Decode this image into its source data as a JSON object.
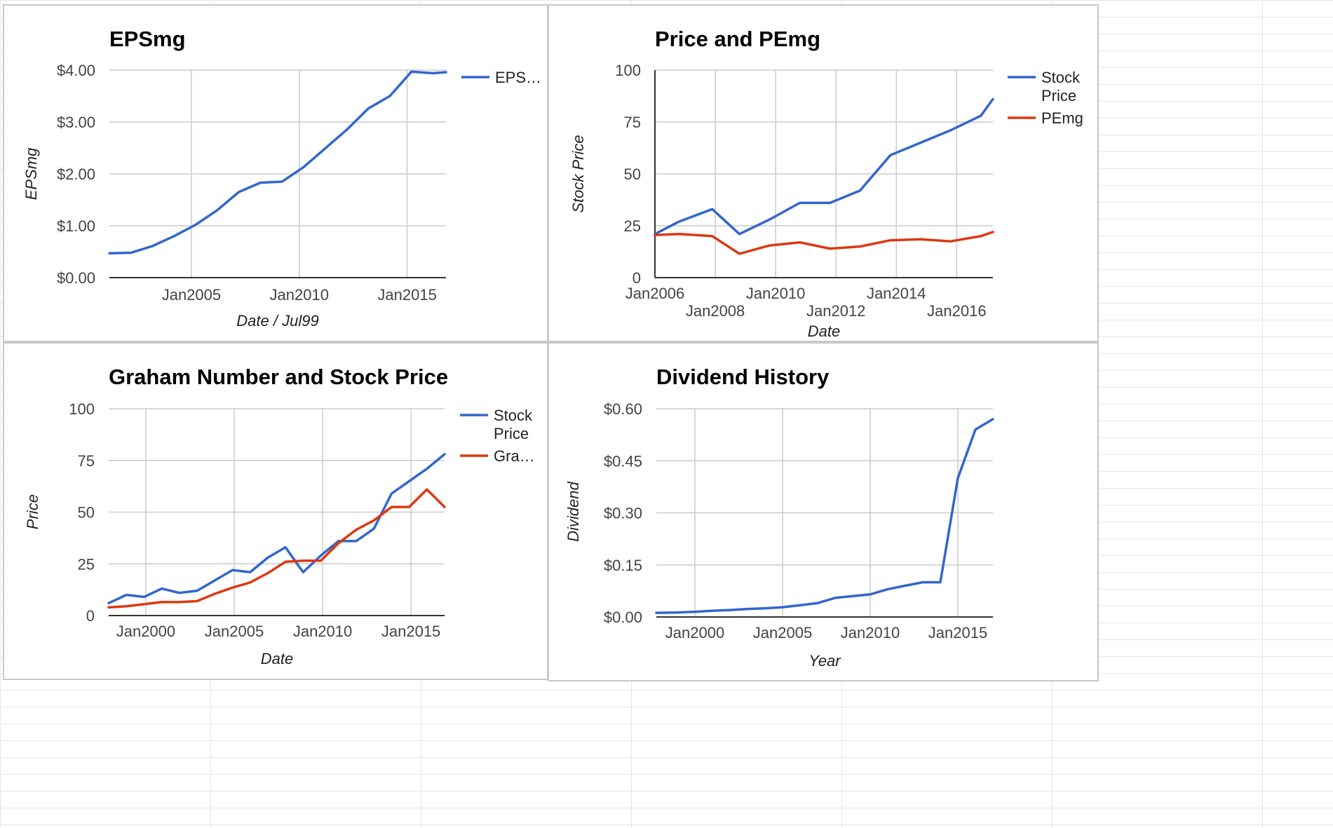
{
  "colors": {
    "blue": "#3366cc",
    "red": "#dc3912"
  },
  "chart_data": [
    {
      "type": "line",
      "title": "EPSmg",
      "xlabel": "Date / Jul99",
      "ylabel": "EPSmg",
      "xlim": [
        2001.2,
        2016.8
      ],
      "ylim": [
        0,
        4
      ],
      "x_ticks": [
        {
          "x": 2005,
          "label": "Jan2005"
        },
        {
          "x": 2010,
          "label": "Jan2010"
        },
        {
          "x": 2015,
          "label": "Jan2015"
        }
      ],
      "y_ticks": [
        {
          "y": 0,
          "label": "$0.00"
        },
        {
          "y": 1,
          "label": "$1.00"
        },
        {
          "y": 2,
          "label": "$2.00"
        },
        {
          "y": 3,
          "label": "$3.00"
        },
        {
          "y": 4,
          "label": "$4.00"
        }
      ],
      "grid": true,
      "legend_position": "right",
      "series": [
        {
          "name": "EPS…",
          "color": "#3366cc",
          "x": [
            2001.2,
            2002.2,
            2003.2,
            2004.2,
            2005.2,
            2006.2,
            2007.2,
            2008.2,
            2009.2,
            2010.2,
            2011.2,
            2012.2,
            2013.2,
            2014.2,
            2015.2,
            2016.2,
            2016.8
          ],
          "y": [
            0.47,
            0.48,
            0.61,
            0.8,
            1.02,
            1.3,
            1.65,
            1.83,
            1.85,
            2.13,
            2.49,
            2.85,
            3.26,
            3.5,
            3.97,
            3.94,
            3.96
          ]
        }
      ]
    },
    {
      "type": "line",
      "title": "Price and PEmg",
      "xlabel": "Date",
      "ylabel": "Stock Price",
      "xlim": [
        2006,
        2017.2
      ],
      "ylim": [
        0,
        100
      ],
      "x_ticks": [
        {
          "x": 2006,
          "label": "Jan2006",
          "row": 0
        },
        {
          "x": 2008,
          "label": "Jan2008",
          "row": 1
        },
        {
          "x": 2010,
          "label": "Jan2010",
          "row": 0
        },
        {
          "x": 2012,
          "label": "Jan2012",
          "row": 1
        },
        {
          "x": 2014,
          "label": "Jan2014",
          "row": 0
        },
        {
          "x": 2016,
          "label": "Jan2016",
          "row": 1
        }
      ],
      "y_ticks": [
        {
          "y": 0,
          "label": "0"
        },
        {
          "y": 25,
          "label": "25"
        },
        {
          "y": 50,
          "label": "50"
        },
        {
          "y": 75,
          "label": "75"
        },
        {
          "y": 100,
          "label": "100"
        }
      ],
      "grid": true,
      "legend_position": "right",
      "series": [
        {
          "name": "Stock Price",
          "color": "#3366cc",
          "x": [
            2006.0,
            2006.8,
            2007.9,
            2008.8,
            2009.8,
            2010.8,
            2011.8,
            2012.8,
            2013.8,
            2014.8,
            2015.8,
            2016.8,
            2017.2
          ],
          "y": [
            21,
            27,
            33,
            21,
            28,
            36,
            36,
            42,
            59,
            65,
            71,
            78,
            86
          ]
        },
        {
          "name": "PEmg",
          "color": "#dc3912",
          "x": [
            2006.0,
            2006.8,
            2007.9,
            2008.8,
            2009.8,
            2010.8,
            2011.8,
            2012.8,
            2013.8,
            2014.8,
            2015.8,
            2016.8,
            2017.2
          ],
          "y": [
            20.5,
            21,
            20,
            11.5,
            15.5,
            17,
            14,
            15,
            18,
            18.5,
            17.5,
            20,
            22
          ]
        }
      ]
    },
    {
      "type": "line",
      "title": "Graham Number and Stock Price",
      "xlabel": "Date",
      "ylabel": "Price",
      "xlim": [
        1997.9,
        2016.9
      ],
      "ylim": [
        0,
        100
      ],
      "x_ticks": [
        {
          "x": 2000,
          "label": "Jan2000"
        },
        {
          "x": 2005,
          "label": "Jan2005"
        },
        {
          "x": 2010,
          "label": "Jan2010"
        },
        {
          "x": 2015,
          "label": "Jan2015"
        }
      ],
      "y_ticks": [
        {
          "y": 0,
          "label": "0"
        },
        {
          "y": 25,
          "label": "25"
        },
        {
          "y": 50,
          "label": "50"
        },
        {
          "y": 75,
          "label": "75"
        },
        {
          "y": 100,
          "label": "100"
        }
      ],
      "grid": true,
      "legend_position": "right",
      "series": [
        {
          "name": "Stock Price",
          "color": "#3366cc",
          "x": [
            1997.9,
            1998.9,
            1999.9,
            2000.9,
            2001.9,
            2002.9,
            2003.9,
            2004.9,
            2005.9,
            2006.9,
            2007.9,
            2008.9,
            2009.9,
            2010.9,
            2011.9,
            2012.9,
            2013.9,
            2014.9,
            2015.9,
            2016.9
          ],
          "y": [
            6,
            10,
            9,
            13,
            11,
            12,
            17,
            22,
            21,
            28,
            33,
            21,
            29,
            36,
            36,
            42,
            59,
            65,
            71,
            78
          ]
        },
        {
          "name": "Gra…",
          "color": "#dc3912",
          "x": [
            1997.9,
            1998.9,
            1999.9,
            2000.9,
            2001.9,
            2002.9,
            2003.9,
            2004.9,
            2005.9,
            2006.9,
            2007.9,
            2008.9,
            2009.9,
            2010.9,
            2011.9,
            2012.9,
            2013.9,
            2014.9,
            2015.9,
            2016.9
          ],
          "y": [
            4,
            4.5,
            5.5,
            6.5,
            6.5,
            7,
            10.5,
            13.5,
            16,
            20.5,
            26,
            26.5,
            26.5,
            35,
            41.5,
            46,
            52.5,
            52.5,
            61,
            52.5
          ]
        }
      ]
    },
    {
      "type": "line",
      "title": "Dividend History",
      "xlabel": "Year",
      "ylabel": "Dividend",
      "xlim": [
        1997.8,
        2017
      ],
      "ylim": [
        0,
        0.6
      ],
      "x_ticks": [
        {
          "x": 2000,
          "label": "Jan2000"
        },
        {
          "x": 2005,
          "label": "Jan2005"
        },
        {
          "x": 2010,
          "label": "Jan2010"
        },
        {
          "x": 2015,
          "label": "Jan2015"
        }
      ],
      "y_ticks": [
        {
          "y": 0,
          "label": "$0.00"
        },
        {
          "y": 0.15,
          "label": "$0.15"
        },
        {
          "y": 0.3,
          "label": "$0.30"
        },
        {
          "y": 0.45,
          "label": "$0.45"
        },
        {
          "y": 0.6,
          "label": "$0.60"
        }
      ],
      "grid": true,
      "legend_position": "none",
      "series": [
        {
          "color": "#3366cc",
          "x": [
            1997.8,
            1999,
            2000,
            2001,
            2002,
            2003,
            2004,
            2005,
            2006,
            2007,
            2008,
            2009,
            2010,
            2011,
            2012,
            2013,
            2014,
            2015,
            2016,
            2017
          ],
          "y": [
            0.012,
            0.013,
            0.015,
            0.018,
            0.02,
            0.023,
            0.025,
            0.028,
            0.034,
            0.04,
            0.055,
            0.06,
            0.065,
            0.08,
            0.09,
            0.1,
            0.1,
            0.4,
            0.54,
            0.57
          ]
        }
      ]
    }
  ]
}
